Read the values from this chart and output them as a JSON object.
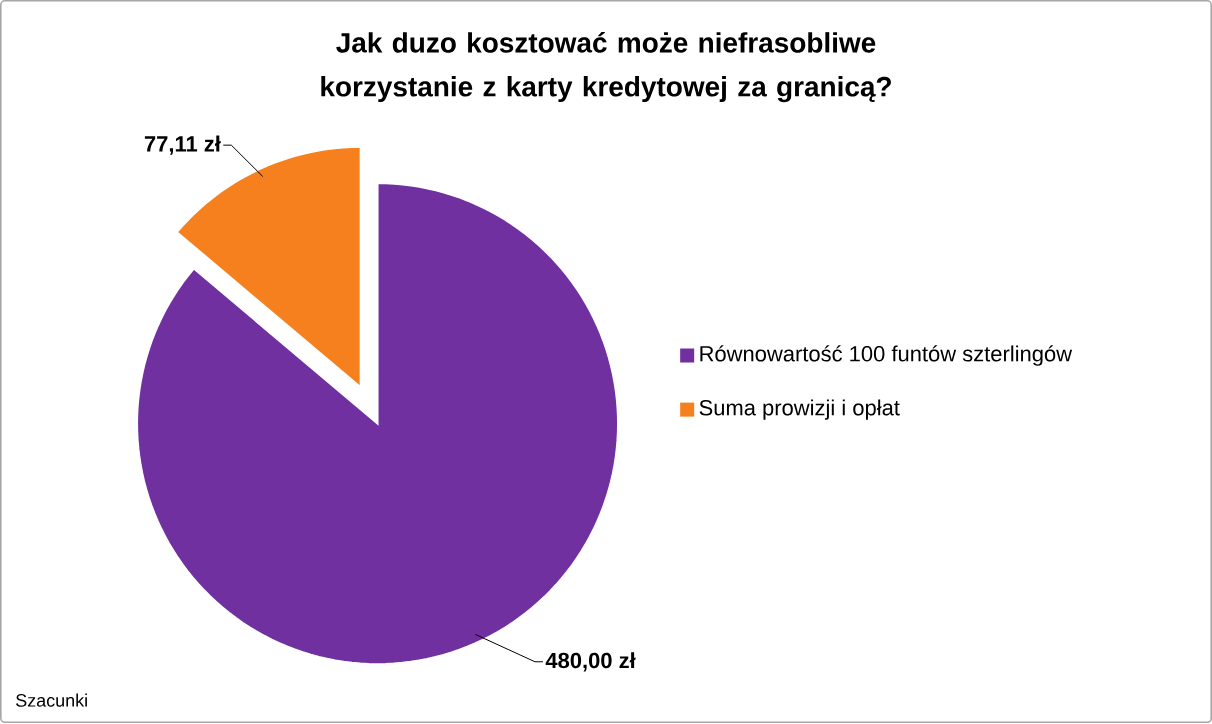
{
  "chart_data": {
    "type": "pie",
    "title": "Jak duzo kosztować może niefrasobliwe korzystanie z karty kredytowej za granicą?",
    "categories": [
      "Równowartość 100 funtów szterlingów",
      "Suma prowizji i opłat"
    ],
    "values": [
      480.0,
      77.11
    ],
    "value_labels": [
      "480,00 zł",
      "77,11 zł"
    ],
    "colors": [
      "#7030a0",
      "#f7801e"
    ],
    "legend": "right",
    "annotations": [
      "Szacunki"
    ]
  }
}
